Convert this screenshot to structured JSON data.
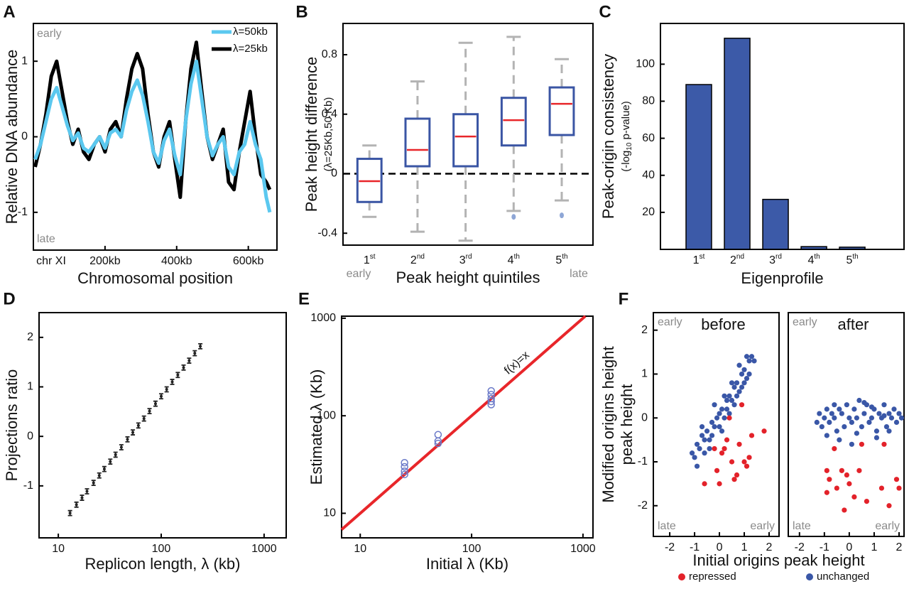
{
  "chart_data": [
    {
      "panel": "A",
      "type": "line",
      "xlabel": "Chromosomal position",
      "ylabel": "Relative DNA abundance",
      "x": [
        5,
        20,
        35,
        50,
        65,
        80,
        95,
        110,
        125,
        140,
        155,
        170,
        185,
        200,
        215,
        230,
        245,
        260,
        275,
        290,
        305,
        320,
        335,
        350,
        365,
        380,
        395,
        410,
        425,
        440,
        455,
        470,
        485,
        500,
        515,
        530,
        545,
        560,
        575,
        590,
        605,
        620,
        635,
        650,
        660
      ],
      "series": [
        {
          "name": "λ=50kb",
          "color": "#5bc8ef",
          "values": [
            -0.3,
            -0.1,
            0.2,
            0.5,
            0.65,
            0.4,
            0.15,
            -0.05,
            0.05,
            -0.15,
            -0.2,
            -0.1,
            0,
            -0.15,
            0.05,
            0.1,
            0,
            0.35,
            0.6,
            0.75,
            0.55,
            0.2,
            -0.2,
            -0.35,
            -0.05,
            0.1,
            -0.25,
            -0.5,
            0.2,
            0.7,
            1.0,
            0.5,
            0,
            -0.25,
            -0.1,
            0,
            -0.4,
            -0.5,
            -0.2,
            -0.1,
            0.2,
            -0.1,
            -0.3,
            -0.8,
            -1.0
          ]
        },
        {
          "name": "λ=25kb",
          "color": "#000000",
          "values": [
            -0.4,
            -0.1,
            0.3,
            0.8,
            1.0,
            0.6,
            0.2,
            -0.1,
            0.1,
            -0.2,
            -0.3,
            -0.1,
            0,
            -0.2,
            0.1,
            0.2,
            0,
            0.5,
            0.9,
            1.1,
            0.9,
            0.3,
            -0.2,
            -0.4,
            0,
            0.2,
            -0.3,
            -0.8,
            0.2,
            0.9,
            1.25,
            0.6,
            0,
            -0.3,
            -0.1,
            0.1,
            -0.6,
            -0.7,
            -0.2,
            0.2,
            0.6,
            0,
            -0.5,
            -0.6,
            -0.7
          ]
        }
      ],
      "xlim": [
        0,
        680
      ],
      "ylim": [
        -1.5,
        1.5
      ],
      "xticks": [
        {
          "value": 200,
          "label": "200kb"
        },
        {
          "value": 400,
          "label": "400kb"
        },
        {
          "value": 600,
          "label": "600kb"
        }
      ],
      "yticks": [
        -1,
        0,
        1
      ],
      "annotations": [
        "early",
        "late",
        "chr XI"
      ],
      "legend": "upper right"
    },
    {
      "panel": "B",
      "type": "box",
      "xlabel": "Peak height quintiles",
      "ylabel": "Peak height difference",
      "ylabel_note": "(λ=25Kb,50 Kb)",
      "categories": [
        "1st",
        "2nd",
        "3rd",
        "4th",
        "5th"
      ],
      "boxes": {
        "low": [
          -0.29,
          -0.39,
          -0.45,
          -0.25,
          -0.18
        ],
        "q1": [
          -0.19,
          0.05,
          0.05,
          0.19,
          0.26
        ],
        "median": [
          -0.05,
          0.16,
          0.25,
          0.36,
          0.47
        ],
        "q3": [
          0.1,
          0.37,
          0.4,
          0.51,
          0.58
        ],
        "high": [
          0.19,
          0.62,
          0.88,
          0.92,
          0.77
        ]
      },
      "outliers": [
        [],
        [],
        [],
        [
          -0.29
        ],
        [
          -0.28
        ]
      ],
      "ylim": [
        -0.48,
        1.01
      ],
      "yticks": [
        -0.4,
        0,
        0.4,
        0.8
      ],
      "reference_line": 0,
      "annotations": [
        "early",
        "late"
      ],
      "box_color": "#3a55a4",
      "median_color": "#e8262a",
      "whisker_color": "#b3b3b3"
    },
    {
      "panel": "C",
      "type": "bar",
      "xlabel": "Eigenprofile",
      "ylabel": "Peak-origin consistency",
      "ylabel_note": "(-log10 p-value)",
      "categories": [
        "1st",
        "2nd",
        "3rd",
        "4th",
        "5th"
      ],
      "values": [
        89,
        114,
        27,
        1.5,
        1.2
      ],
      "color": "#3c5aa8",
      "ylim": [
        0,
        122
      ],
      "yticks": [
        20,
        40,
        60,
        80,
        100
      ]
    },
    {
      "panel": "D",
      "type": "errorbar",
      "xlabel": "Replicon length, λ (kb)",
      "ylabel": "Projections ratio",
      "xscale": "log",
      "x": [
        13,
        15,
        17,
        19,
        22,
        25,
        28,
        32,
        36,
        41,
        47,
        53,
        60,
        68,
        77,
        88,
        100,
        113,
        128,
        145,
        165,
        187,
        212,
        240
      ],
      "values": [
        -1.55,
        -1.38,
        -1.24,
        -1.11,
        -0.94,
        -0.79,
        -0.66,
        -0.51,
        -0.37,
        -0.22,
        -0.06,
        0.08,
        0.22,
        0.36,
        0.51,
        0.66,
        0.81,
        0.95,
        1.1,
        1.24,
        1.39,
        1.53,
        1.68,
        1.82
      ],
      "errors": [
        0.05,
        0.05,
        0.05,
        0.05,
        0.05,
        0.05,
        0.05,
        0.05,
        0.05,
        0.05,
        0.05,
        0.05,
        0.05,
        0.05,
        0.05,
        0.05,
        0.05,
        0.05,
        0.05,
        0.05,
        0.05,
        0.05,
        0.05,
        0.05
      ],
      "color": "#222222",
      "xlim": [
        6.5,
        1640
      ],
      "ylim": [
        -2.05,
        2.5
      ],
      "xticks": [
        10,
        100,
        1000
      ],
      "yticks": [
        -1,
        0,
        1,
        2
      ]
    },
    {
      "panel": "E",
      "type": "scatter",
      "xlabel": "Initial λ (Kb)",
      "ylabel": "Estimated λ (Kb)",
      "xscale": "log",
      "yscale": "log",
      "x": [
        25,
        25,
        25,
        25,
        50,
        50,
        50,
        150,
        150,
        150,
        150,
        150
      ],
      "values": [
        25,
        27,
        30,
        33,
        52,
        55,
        64,
        130,
        140,
        150,
        165,
        180
      ],
      "color": "#6a79c8",
      "hollow": true,
      "xlim": [
        6.8,
        1230
      ],
      "ylim": [
        5.6,
        1050
      ],
      "xticks": [
        10,
        100,
        1000
      ],
      "yticks": [
        10,
        100,
        1000
      ],
      "reference_line": {
        "label": "f(x)=x",
        "color": "#e8262a"
      }
    },
    {
      "panel": "F",
      "type": "scatter",
      "xlabel": "Initial origins peak height",
      "ylabel": [
        "Modified origins height",
        "peak height"
      ],
      "series": [
        {
          "name": "repressed",
          "color": "#e3222a"
        },
        {
          "name": "unchanged",
          "color": "#3a57a7"
        }
      ],
      "subplots": [
        {
          "title": "before",
          "annotations": [
            "early",
            "late",
            "early"
          ],
          "xlim": [
            -2.66,
            2.4
          ],
          "ylim": [
            -2.7,
            2.4
          ],
          "xticks": [
            -2,
            -1,
            0,
            1,
            2
          ],
          "yticks": [
            -2,
            -1,
            0,
            1,
            2
          ],
          "points": [
            {
              "x": [
                -0.6,
                -0.2,
                0.1,
                0.3,
                0.5,
                0.7,
                0.8,
                1.0,
                1.2,
                0.2,
                0.6,
                0.9,
                1.3,
                1.1,
                -0.1,
                0.4,
                1.8,
                0
              ],
              "values": [
                -1.5,
                -0.7,
                -0.8,
                -0.5,
                -1.0,
                -1.3,
                -0.6,
                -1.0,
                -0.9,
                -0.7,
                -1.4,
                0.3,
                -0.4,
                -1.1,
                -1.2,
                0,
                -0.3,
                -1.5
              ]
            },
            {
              "x": [
                -1.1,
                -1.0,
                -0.9,
                -0.8,
                -0.7,
                -0.6,
                -0.5,
                -0.4,
                -0.3,
                -0.2,
                -0.1,
                0,
                0.1,
                0.2,
                0.3,
                0.4,
                0.5,
                0.6,
                0.7,
                0.8,
                0.9,
                1.0,
                1.1,
                1.2,
                1.3,
                1.4,
                -0.9,
                -0.6,
                -0.3,
                0,
                0.3,
                0.6,
                0.9,
                1.2,
                -0.7,
                -0.2,
                0.2,
                0.5,
                0.8,
                1.1,
                -0.4,
                0.1,
                0.4,
                0.7,
                1.0
              ],
              "values": [
                -0.8,
                -0.9,
                -0.6,
                -0.7,
                -0.4,
                -0.5,
                -0.3,
                -0.5,
                -0.1,
                -0.2,
                0,
                0.1,
                0.2,
                0,
                0.4,
                0.5,
                0.4,
                0.7,
                0.8,
                0.6,
                1.0,
                1.1,
                0.9,
                1.3,
                1.4,
                1.3,
                -1.1,
                -0.8,
                -0.4,
                -0.2,
                0.2,
                0.3,
                0.7,
                1.0,
                -0.2,
                0.3,
                0.5,
                0.8,
                1.2,
                1.4,
                -0.7,
                -0.3,
                0.1,
                0.5,
                0.8
              ]
            }
          ]
        },
        {
          "title": "after",
          "annotations": [
            "early",
            "late",
            "early"
          ],
          "xlim": [
            -2.45,
            2.2
          ],
          "ylim": [
            -2.7,
            2.4
          ],
          "xticks": [
            -2,
            -1,
            0,
            1,
            2
          ],
          "points": [
            {
              "x": [
                -0.9,
                -0.8,
                -0.3,
                -0.5,
                -0.1,
                0.2,
                -0.6,
                0.5,
                0,
                0.7,
                1.4,
                1.3,
                2.0,
                1.6,
                -0.9,
                -0.2,
                0.4,
                1.9
              ],
              "values": [
                -1.2,
                -1.4,
                -1.2,
                -1.6,
                -1.3,
                -1.8,
                -0.7,
                -0.6,
                -1.5,
                -1.9,
                -0.6,
                -1.6,
                -1.6,
                -2.0,
                -1.7,
                -2.1,
                -1.2,
                -1.4
              ]
            },
            {
              "x": [
                -1.3,
                -1.2,
                -1.1,
                -1.0,
                -0.9,
                -0.8,
                -0.7,
                -0.6,
                -0.5,
                -0.4,
                -0.3,
                -0.2,
                -0.1,
                0,
                0.1,
                0.2,
                0.3,
                0.4,
                0.5,
                0.6,
                0.7,
                0.8,
                0.9,
                1.0,
                1.1,
                1.2,
                1.3,
                1.4,
                1.5,
                1.6,
                1.7,
                1.8,
                1.9,
                2.0,
                2.1,
                -0.9,
                -0.4,
                0.1,
                0.6,
                1.1,
                1.6,
                -0.6,
                0.3,
                0.9,
                1.4
              ],
              "values": [
                -0.1,
                0.1,
                -0.2,
                0,
                0.2,
                -0.1,
                0.1,
                0,
                -0.3,
                0.2,
                0.1,
                -0.2,
                0.3,
                0,
                -0.1,
                0.2,
                0,
                0.4,
                -0.2,
                0.1,
                0.3,
                -0.1,
                0,
                0.2,
                -0.3,
                0.1,
                0,
                0.3,
                -0.2,
                0.1,
                0,
                0.2,
                -0.1,
                0.1,
                0,
                -0.4,
                -0.5,
                -0.6,
                0.35,
                -0.45,
                -0.3,
                0.3,
                -0.35,
                0.25,
                0.05
              ]
            }
          ]
        }
      ]
    }
  ]
}
